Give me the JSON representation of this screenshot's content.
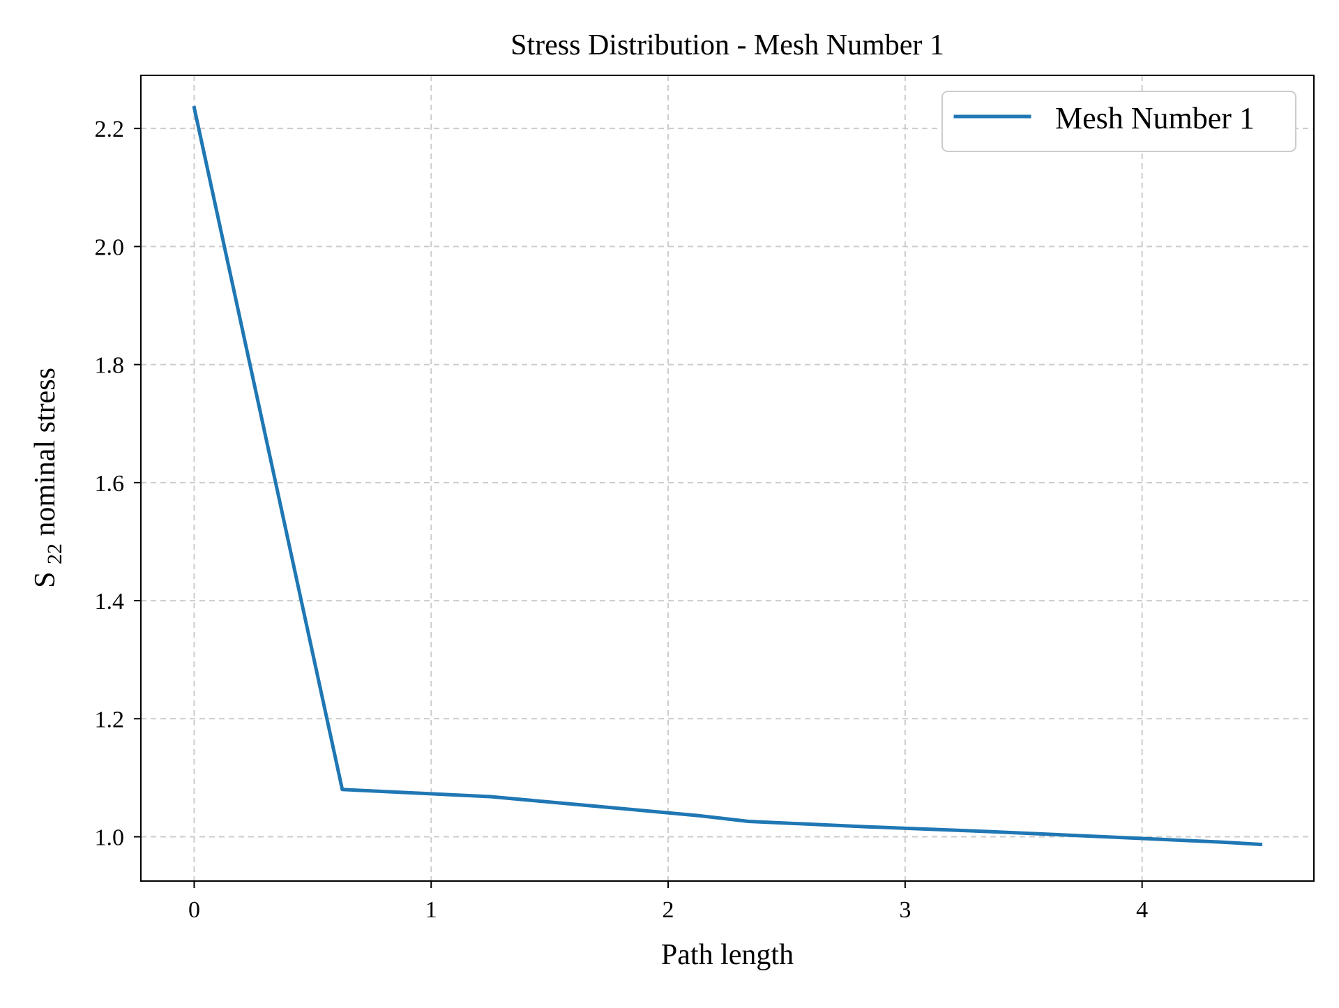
{
  "chart_data": {
    "type": "line",
    "title": "Stress Distribution - Mesh Number 1",
    "xlabel": "Path length",
    "ylabel": {
      "main": "S",
      "subscript": "22",
      "rest": " nominal stress"
    },
    "xlim": [
      -0.225,
      4.725
    ],
    "ylim": [
      0.925,
      2.29
    ],
    "xticks": [
      {
        "value": 0,
        "label": "0"
      },
      {
        "value": 1,
        "label": "1"
      },
      {
        "value": 2,
        "label": "2"
      },
      {
        "value": 3,
        "label": "3"
      },
      {
        "value": 4,
        "label": "4"
      }
    ],
    "yticks": [
      {
        "value": 1.0,
        "label": "1.0"
      },
      {
        "value": 1.2,
        "label": "1.2"
      },
      {
        "value": 1.4,
        "label": "1.4"
      },
      {
        "value": 1.6,
        "label": "1.6"
      },
      {
        "value": 1.8,
        "label": "1.8"
      },
      {
        "value": 2.0,
        "label": "2.0"
      },
      {
        "value": 2.2,
        "label": "2.2"
      }
    ],
    "grid": true,
    "legend_position": "top-right",
    "series": [
      {
        "name": "Mesh Number 1",
        "color": "#1f77b4",
        "x": [
          0.0,
          0.6248,
          1.2496,
          1.687,
          2.1243,
          2.3394,
          2.8393,
          3.3392,
          3.839,
          4.339,
          4.5
        ],
        "y": [
          2.235,
          1.08,
          1.068,
          1.052,
          1.036,
          1.026,
          1.017,
          1.009,
          1.0,
          0.991,
          0.987
        ]
      }
    ]
  }
}
